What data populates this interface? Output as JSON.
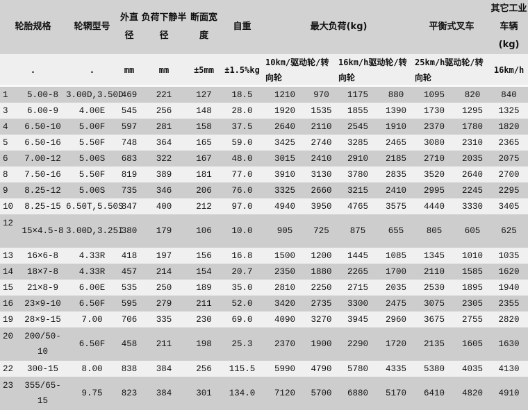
{
  "header": {
    "tire_spec": "轮胎规格",
    "rim_model": "轮辋型号",
    "outer_diameter": "外直径",
    "static_radius": "负荷下静半径",
    "section_width": "断面宽度",
    "weight": "自重",
    "max_load": "最大负荷(kg)",
    "counterbalance_forklift": "平衡式叉车",
    "other_vehicles": "其它工业车辆(kg)"
  },
  "units": {
    "tire_spec": ".",
    "rim_model": ".",
    "outer_diameter": "mm",
    "static_radius": "mm",
    "section_width": "±5mm",
    "weight": "±1.5%kg",
    "speed_10": "10km/驱动轮/转向轮",
    "speed_16": "16km/h驱动轮/转向轮",
    "speed_25": "25km/h驱动轮/转向轮",
    "speed_16_other": "16km/h"
  },
  "rows": [
    [
      "1",
      "5.00-8",
      "3.00D,3.50D",
      "469",
      "221",
      "127",
      "18.5",
      "1210",
      "970",
      "1175",
      "880",
      "1095",
      "820",
      "840"
    ],
    [
      "3",
      "6.00-9",
      "4.00E",
      "545",
      "256",
      "148",
      "28.0",
      "1920",
      "1535",
      "1855",
      "1390",
      "1730",
      "1295",
      "1325"
    ],
    [
      "4",
      "6.50-10",
      "5.00F",
      "597",
      "281",
      "158",
      "37.5",
      "2640",
      "2110",
      "2545",
      "1910",
      "2370",
      "1780",
      "1820"
    ],
    [
      "5",
      "6.50-16",
      "5.50F",
      "748",
      "364",
      "165",
      "59.0",
      "3425",
      "2740",
      "3285",
      "2465",
      "3080",
      "2310",
      "2365"
    ],
    [
      "6",
      "7.00-12",
      "5.00S",
      "683",
      "322",
      "167",
      "48.0",
      "3015",
      "2410",
      "2910",
      "2185",
      "2710",
      "2035",
      "2075"
    ],
    [
      "8",
      "7.50-16",
      "5.50F",
      "819",
      "389",
      "181",
      "77.0",
      "3910",
      "3130",
      "3780",
      "2835",
      "3520",
      "2640",
      "2700"
    ],
    [
      "9",
      "8.25-12",
      "5.00S",
      "735",
      "346",
      "206",
      "76.0",
      "3325",
      "2660",
      "3215",
      "2410",
      "2995",
      "2245",
      "2295"
    ],
    [
      "10",
      "8.25-15",
      "6.50T,5.50S",
      "847",
      "400",
      "212",
      "97.0",
      "4940",
      "3950",
      "4765",
      "3575",
      "4440",
      "3330",
      "3405"
    ],
    [
      "12",
      "15×4.5-8",
      "3.00D,3.25I",
      "380",
      "179",
      "106",
      "10.0",
      "905",
      "725",
      "875",
      "655",
      "805",
      "605",
      "625"
    ],
    [
      "13",
      "16×6-8",
      "4.33R",
      "418",
      "197",
      "156",
      "16.8",
      "1500",
      "1200",
      "1445",
      "1085",
      "1345",
      "1010",
      "1035"
    ],
    [
      "14",
      "18×7-8",
      "4.33R",
      "457",
      "214",
      "154",
      "20.7",
      "2350",
      "1880",
      "2265",
      "1700",
      "2110",
      "1585",
      "1620"
    ],
    [
      "15",
      "21×8-9",
      "6.00E",
      "535",
      "250",
      "189",
      "35.0",
      "2810",
      "2250",
      "2715",
      "2035",
      "2530",
      "1895",
      "1940"
    ],
    [
      "16",
      "23×9-10",
      "6.50F",
      "595",
      "279",
      "211",
      "52.0",
      "3420",
      "2735",
      "3300",
      "2475",
      "3075",
      "2305",
      "2355"
    ],
    [
      "19",
      "28×9-15",
      "7.00",
      "706",
      "335",
      "230",
      "69.0",
      "4090",
      "3270",
      "3945",
      "2960",
      "3675",
      "2755",
      "2820"
    ],
    [
      "20",
      "200/50-10",
      "6.50F",
      "458",
      "211",
      "198",
      "25.3",
      "2370",
      "1900",
      "2290",
      "1720",
      "2135",
      "1605",
      "1630"
    ],
    [
      "22",
      "300-15",
      "8.00",
      "838",
      "384",
      "256",
      "115.5",
      "5990",
      "4790",
      "5780",
      "4335",
      "5380",
      "4035",
      "4130"
    ],
    [
      "23",
      "355/65-15",
      "9.75",
      "823",
      "384",
      "301",
      "134.0",
      "7120",
      "5700",
      "6880",
      "5170",
      "6410",
      "4820",
      "4910"
    ]
  ]
}
